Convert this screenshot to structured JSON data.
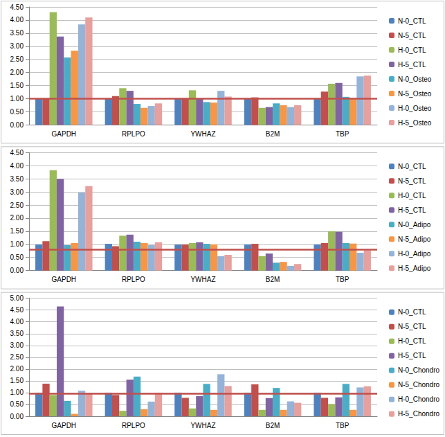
{
  "chart_data": [
    {
      "type": "bar",
      "categories": [
        "GAPDH",
        "RPLPO",
        "YWHAZ",
        "B2M",
        "TBP"
      ],
      "series": [
        {
          "name": "N-0_CTL",
          "color": "#4F81BD",
          "values": [
            1.0,
            1.0,
            1.0,
            1.0,
            1.0
          ]
        },
        {
          "name": "N-5_CTL",
          "color": "#C0504D",
          "values": [
            1.0,
            1.1,
            1.0,
            1.05,
            1.27
          ]
        },
        {
          "name": "H-0_CTL",
          "color": "#9BBB59",
          "values": [
            4.3,
            1.4,
            1.32,
            0.65,
            1.57
          ]
        },
        {
          "name": "H-5_CTL",
          "color": "#8064A2",
          "values": [
            3.37,
            1.3,
            1.0,
            0.68,
            1.6
          ]
        },
        {
          "name": "N-0_Osteo",
          "color": "#4BACC6",
          "values": [
            2.57,
            0.8,
            0.87,
            0.82,
            1.07
          ]
        },
        {
          "name": "N-5_Osteo",
          "color": "#F79646",
          "values": [
            2.83,
            0.65,
            0.85,
            0.75,
            1.03
          ]
        },
        {
          "name": "H-0_Osteo",
          "color": "#95B3D7",
          "values": [
            3.83,
            0.72,
            1.3,
            0.68,
            1.85
          ]
        },
        {
          "name": "H-5_Osteo",
          "color": "#E6A09E",
          "values": [
            4.1,
            0.82,
            1.08,
            0.75,
            1.88
          ]
        }
      ],
      "reference_line": 1.0,
      "ylim": [
        0,
        4.5
      ],
      "yticks": [
        {
          "value": 0,
          "label": "0.00"
        },
        {
          "value": 0.5,
          "label": "0.50"
        },
        {
          "value": 1,
          "label": "1.00"
        },
        {
          "value": 1.5,
          "label": "1.50"
        },
        {
          "value": 2,
          "label": "2.00"
        },
        {
          "value": 2.5,
          "label": "2.50"
        },
        {
          "value": 3,
          "label": "3.00"
        },
        {
          "value": 3.5,
          "label": "3.50"
        },
        {
          "value": 4,
          "label": "4.00"
        },
        {
          "value": 4.5,
          "label": "4.50"
        }
      ],
      "grid": true,
      "legend": "right"
    },
    {
      "type": "bar",
      "categories": [
        "GAPDH",
        "RPLPO",
        "YWHAZ",
        "B2M",
        "TBP"
      ],
      "series": [
        {
          "name": "N-0_CTL",
          "color": "#4F81BD",
          "values": [
            1.0,
            1.02,
            1.0,
            1.0,
            1.0
          ]
        },
        {
          "name": "N-5_CTL",
          "color": "#C0504D",
          "values": [
            1.12,
            0.93,
            1.0,
            1.02,
            1.05
          ]
        },
        {
          "name": "H-0_CTL",
          "color": "#9BBB59",
          "values": [
            3.83,
            1.33,
            1.05,
            0.55,
            1.5
          ]
        },
        {
          "name": "H-5_CTL",
          "color": "#8064A2",
          "values": [
            3.5,
            1.37,
            1.08,
            0.65,
            1.48
          ]
        },
        {
          "name": "N-0_Adipo",
          "color": "#4BACC6",
          "values": [
            0.97,
            1.1,
            1.02,
            0.3,
            1.05
          ]
        },
        {
          "name": "N-5_Adipo",
          "color": "#F79646",
          "values": [
            1.05,
            1.05,
            1.0,
            0.33,
            1.03
          ]
        },
        {
          "name": "H-0_Adipo",
          "color": "#95B3D7",
          "values": [
            2.97,
            0.98,
            0.55,
            0.18,
            0.68
          ]
        },
        {
          "name": "H-5_Adipo",
          "color": "#E6A09E",
          "values": [
            3.22,
            1.08,
            0.6,
            0.25,
            0.77
          ]
        }
      ],
      "reference_line": 0.8,
      "ylim": [
        0,
        4.5
      ],
      "yticks": [
        {
          "value": 0,
          "label": "0.00"
        },
        {
          "value": 0.5,
          "label": "0.50"
        },
        {
          "value": 1,
          "label": "1.00"
        },
        {
          "value": 1.5,
          "label": "1.50"
        },
        {
          "value": 2,
          "label": "2.00"
        },
        {
          "value": 2.5,
          "label": "2.50"
        },
        {
          "value": 3,
          "label": "3.00"
        },
        {
          "value": 3.5,
          "label": "3.50"
        },
        {
          "value": 4,
          "label": "4.00"
        },
        {
          "value": 4.5,
          "label": "4.50"
        }
      ],
      "grid": true,
      "legend": "right"
    },
    {
      "type": "bar",
      "categories": [
        "GAPDH",
        "RPLPO",
        "YWHAZ",
        "B2M",
        "TBP"
      ],
      "series": [
        {
          "name": "N-0_CTL",
          "color": "#4F81BD",
          "values": [
            1.0,
            1.0,
            1.0,
            1.0,
            1.0
          ]
        },
        {
          "name": "N-5_CTL",
          "color": "#C0504D",
          "values": [
            1.38,
            0.9,
            0.78,
            1.35,
            0.78
          ]
        },
        {
          "name": "H-0_CTL",
          "color": "#9BBB59",
          "values": [
            0.9,
            0.23,
            0.33,
            0.27,
            0.52
          ]
        },
        {
          "name": "H-5_CTL",
          "color": "#8064A2",
          "values": [
            4.65,
            1.55,
            0.85,
            0.77,
            0.8
          ]
        },
        {
          "name": "N-0_Chondro",
          "color": "#4BACC6",
          "values": [
            0.65,
            1.68,
            1.37,
            1.2,
            1.37
          ]
        },
        {
          "name": "N-5_Chondro",
          "color": "#F79646",
          "values": [
            0.1,
            0.3,
            0.27,
            0.27,
            0.27
          ]
        },
        {
          "name": "H-0_Chondro",
          "color": "#95B3D7",
          "values": [
            1.08,
            0.62,
            1.78,
            0.63,
            1.22
          ]
        },
        {
          "name": "H-5_Chondro",
          "color": "#E6A09E",
          "values": [
            1.0,
            1.0,
            1.28,
            0.57,
            1.27
          ]
        }
      ],
      "reference_line": 0.95,
      "ylim": [
        0,
        5
      ],
      "yticks": [
        {
          "value": 0,
          "label": "0.00"
        },
        {
          "value": 0.5,
          "label": "0.50"
        },
        {
          "value": 1,
          "label": "1.00"
        },
        {
          "value": 1.5,
          "label": "1.50"
        },
        {
          "value": 2,
          "label": "2.00"
        },
        {
          "value": 2.5,
          "label": "2.50"
        },
        {
          "value": 3,
          "label": "3.00"
        },
        {
          "value": 3.5,
          "label": "3.50"
        },
        {
          "value": 4,
          "label": "4.00"
        },
        {
          "value": 4.5,
          "label": "4.50"
        },
        {
          "value": 5,
          "label": "5.00"
        }
      ],
      "grid": true,
      "legend": "right"
    }
  ]
}
